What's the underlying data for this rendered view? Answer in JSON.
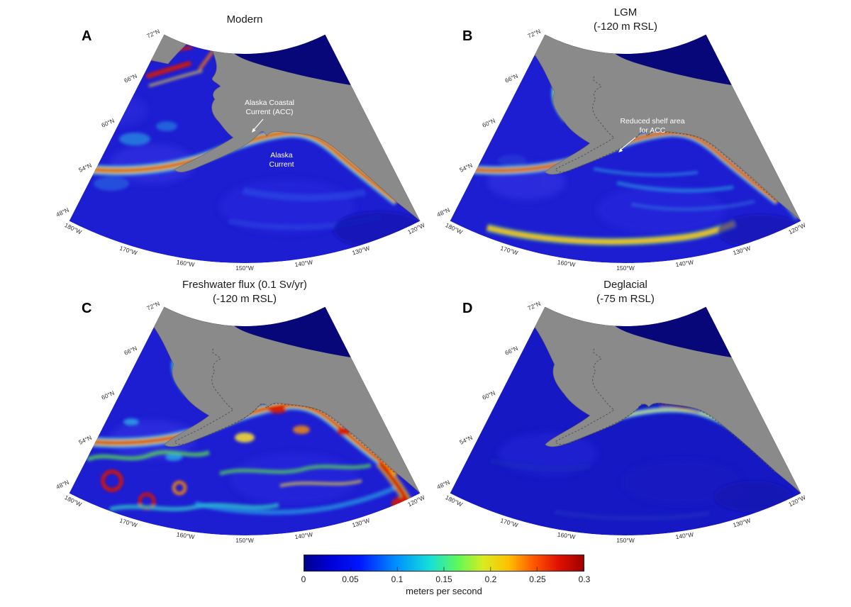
{
  "panels": [
    {
      "letter": "A",
      "title_lines": [
        "Modern"
      ],
      "annotations": {
        "acc": [
          "Alaska Coastal",
          "Current (ACC)"
        ],
        "alaska_current": [
          "Alaska",
          "Current"
        ]
      }
    },
    {
      "letter": "B",
      "title_lines": [
        "LGM",
        "(-120 m RSL)"
      ],
      "annotations": {
        "reduced_shelf": [
          "Reduced shelf area",
          "for ACC"
        ]
      }
    },
    {
      "letter": "C",
      "title_lines": [
        "Freshwater flux (0.1 Sv/yr)",
        "(-120 m RSL)"
      ]
    },
    {
      "letter": "D",
      "title_lines": [
        "Deglacial",
        "(-75 m RSL)"
      ]
    }
  ],
  "axis": {
    "lat_labels": [
      "72°N",
      "66°N",
      "60°N",
      "54°N",
      "48°N"
    ],
    "lon_labels": [
      "180°W",
      "170°W",
      "160°W",
      "150°W",
      "140°W",
      "130°W",
      "120°W"
    ]
  },
  "colorbar": {
    "tick_labels": [
      "0",
      "0.05",
      "0.1",
      "0.15",
      "0.2",
      "0.25",
      "0.3"
    ],
    "caption": "meters per second",
    "min": 0,
    "max": 0.3
  },
  "colors": {
    "land": "#8a8a8a",
    "ocean": "#1d1dd2",
    "arctic_deep": "#000078",
    "speed_slow": "#2fd8e8",
    "speed_mid": "#ffe62a",
    "speed_fast": "#d81400"
  }
}
